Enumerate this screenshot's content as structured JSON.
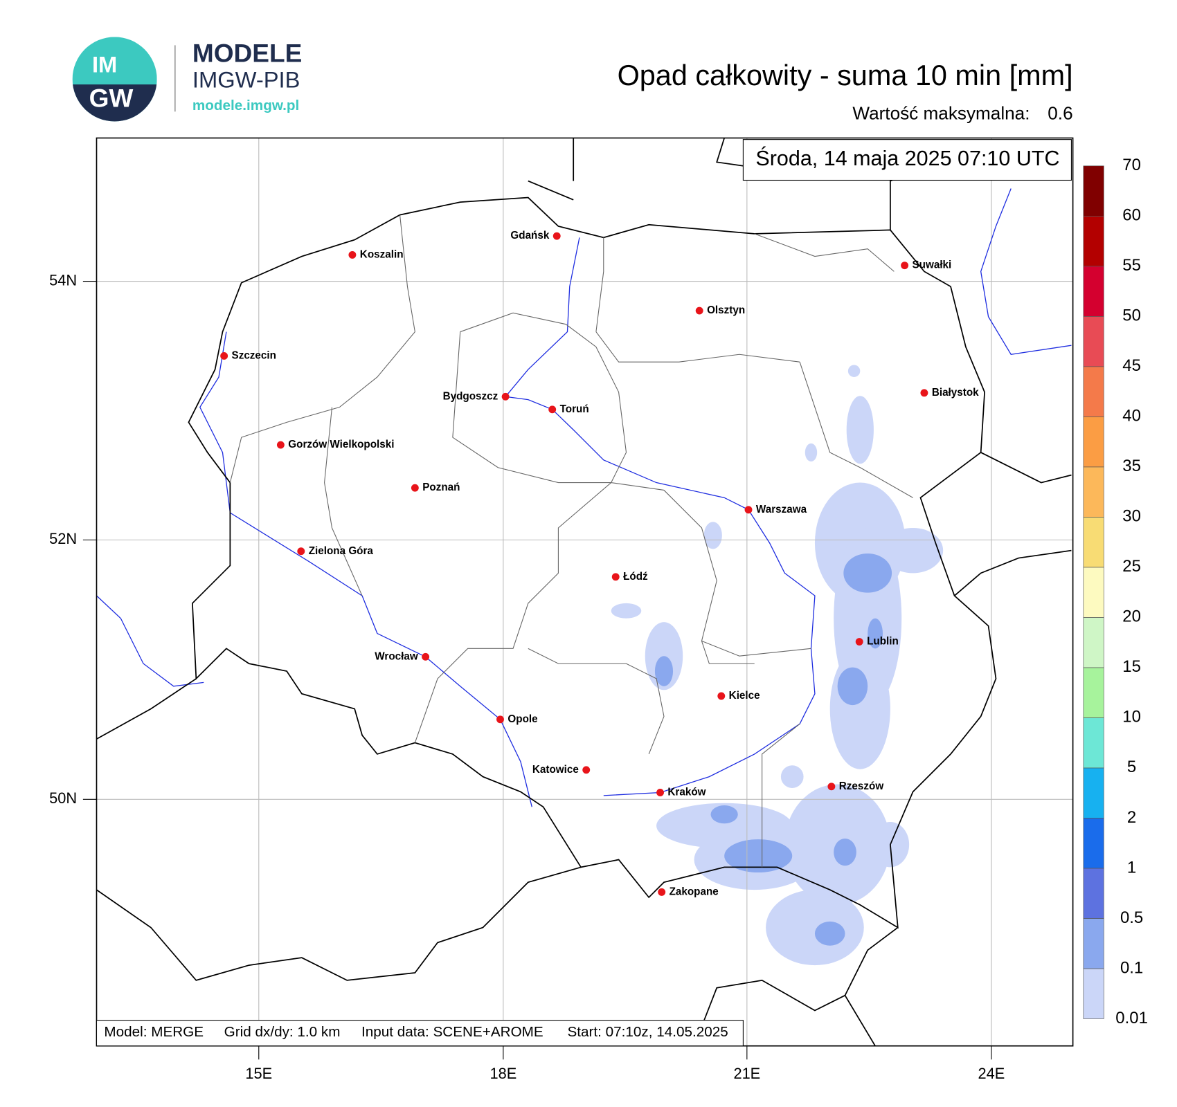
{
  "header": {
    "logo_top": "IM",
    "logo_bottom": "GW",
    "brand": "MODELE",
    "brand_sub": "IMGW-PIB",
    "url": "modele.imgw.pl",
    "title": "Opad całkowity - suma 10 min [mm]",
    "max_label": "Wartość maksymalna:",
    "max_value": "0.6",
    "date": "Środa, 14 maja 2025 07:10 UTC"
  },
  "footer": [
    "Model: MERGE",
    "Grid dx/dy: 1.0 km",
    "Input data: SCENE+AROME",
    "Start: 07:10z, 14.05.2025"
  ],
  "lat_labels": [
    "54N",
    "52N",
    "50N"
  ],
  "lon_labels": [
    "15E",
    "18E",
    "21E",
    "24E"
  ],
  "cities": [
    "Gdańsk",
    "Koszalin",
    "Szczecin",
    "Suwałki",
    "Olsztyn",
    "Białystok",
    "Bydgoszcz",
    "Toruń",
    "Gorzów Wielkopolski",
    "Poznań",
    "Warszawa",
    "Zielona Góra",
    "Łódź",
    "Lublin",
    "Wrocław",
    "Kielce",
    "Opole",
    "Katowice",
    "Kraków",
    "Rzeszów",
    "Zakopane"
  ],
  "colorbar": {
    "levels": [
      0.01,
      0.1,
      0.5,
      1,
      2,
      5,
      10,
      15,
      20,
      25,
      30,
      35,
      40,
      45,
      50,
      55,
      60,
      70
    ],
    "colors": [
      "#cbd6f8",
      "#8aa8ee",
      "#5d72e0",
      "#1a6ceb",
      "#17b1f0",
      "#6de7d6",
      "#a7f39c",
      "#cff6c6",
      "#fdfac0",
      "#f8dc74",
      "#fcb85a",
      "#fb9d44",
      "#f47a4a",
      "#e84b55",
      "#d4002f",
      "#b30000",
      "#800000"
    ]
  }
}
